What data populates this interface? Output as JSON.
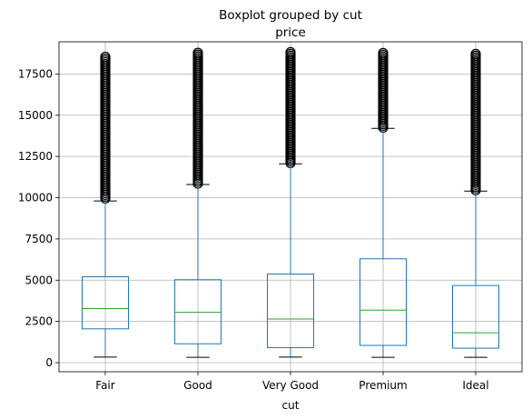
{
  "chart_data": {
    "type": "box",
    "suptitle": "Boxplot grouped by cut",
    "title": "price",
    "xlabel": "cut",
    "ylabel": "",
    "ylim": [
      -550,
      19450
    ],
    "yticks": [
      0,
      2500,
      5000,
      7500,
      10000,
      12500,
      15000,
      17500
    ],
    "ytick_labels": [
      "0",
      "2500",
      "5000",
      "7500",
      "10000",
      "12500",
      "15000",
      "17500"
    ],
    "grid": true,
    "categories": [
      "Fair",
      "Good",
      "Very Good",
      "Premium",
      "Ideal"
    ],
    "boxes": [
      {
        "category": "Fair",
        "whisker_low": 337,
        "q1": 2050,
        "median": 3282,
        "q3": 5206,
        "whisker_high": 9800,
        "outliers_from": 9950,
        "outliers_to": 18574
      },
      {
        "category": "Good",
        "whisker_low": 327,
        "q1": 1145,
        "median": 3050,
        "q3": 5028,
        "whisker_high": 10800,
        "outliers_from": 10850,
        "outliers_to": 18788
      },
      {
        "category": "Very Good",
        "whisker_low": 336,
        "q1": 912,
        "median": 2648,
        "q3": 5373,
        "whisker_high": 12050,
        "outliers_from": 12100,
        "outliers_to": 18818
      },
      {
        "category": "Premium",
        "whisker_low": 326,
        "q1": 1046,
        "median": 3185,
        "q3": 6296,
        "whisker_high": 14200,
        "outliers_from": 14250,
        "outliers_to": 18823
      },
      {
        "category": "Ideal",
        "whisker_low": 326,
        "q1": 878,
        "median": 1810,
        "q3": 4678,
        "whisker_high": 10400,
        "outliers_from": 10450,
        "outliers_to": 18806
      }
    ],
    "colors": {
      "box": "#1f77b4",
      "median": "#2ca02c",
      "whisker": "#1f77b4",
      "cap": "#000000",
      "outlier": "#000000",
      "grid": "#b0b0b0",
      "axes": "#000000"
    }
  }
}
